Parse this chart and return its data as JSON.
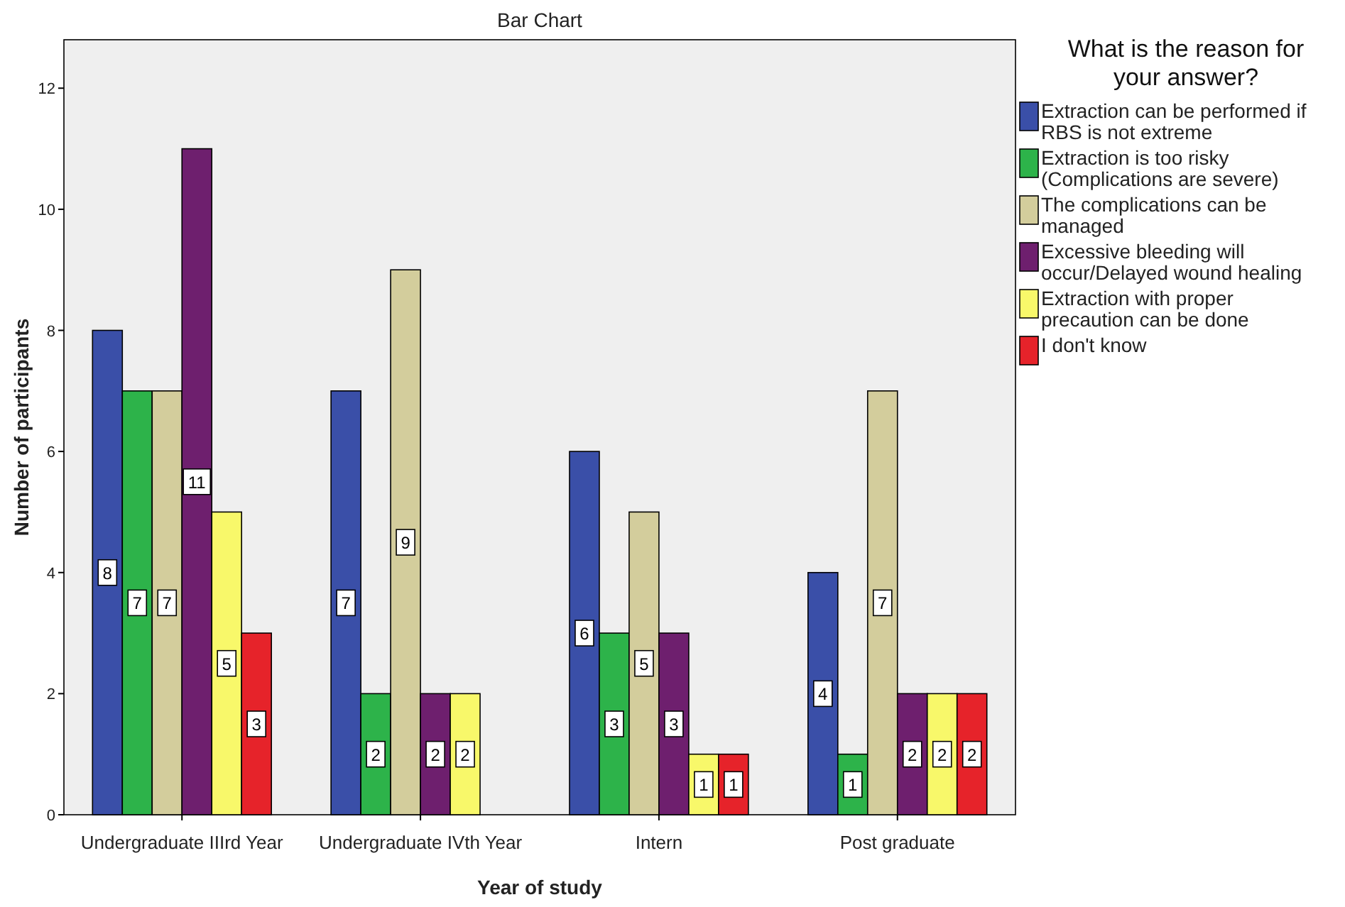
{
  "chart_data": {
    "type": "bar",
    "title": "Bar Chart",
    "xlabel": "Year of study",
    "ylabel": "Number of participants",
    "legend_title": "What is the reason for your answer?",
    "categories": [
      "Undergraduate IIIrd Year",
      "Undergraduate IVth Year",
      "Intern",
      "Post graduate"
    ],
    "series": [
      {
        "name": "Extraction can be performed if RBS is not extreme",
        "color": "#3a4fa8",
        "values": [
          8,
          7,
          6,
          4
        ]
      },
      {
        "name": "Extraction is too risky (Complications are severe)",
        "color": "#2db34a",
        "values": [
          7,
          2,
          3,
          1
        ]
      },
      {
        "name": "The complications can be managed",
        "color": "#d3cd9c",
        "values": [
          7,
          9,
          5,
          7
        ]
      },
      {
        "name": "Excessive bleeding will occur/Delayed wound healing",
        "color": "#6e1f6e",
        "values": [
          11,
          2,
          3,
          2
        ]
      },
      {
        "name": "Extraction with proper precaution can be done",
        "color": "#f8f86a",
        "values": [
          5,
          2,
          1,
          2
        ]
      },
      {
        "name": "I don't know",
        "color": "#e6232a",
        "values": [
          3,
          null,
          1,
          2
        ]
      }
    ],
    "ylim": [
      0,
      12.8
    ],
    "yticks": [
      0,
      2,
      4,
      6,
      8,
      10,
      12
    ],
    "grid": false,
    "legend": "right",
    "data_labels": true
  }
}
